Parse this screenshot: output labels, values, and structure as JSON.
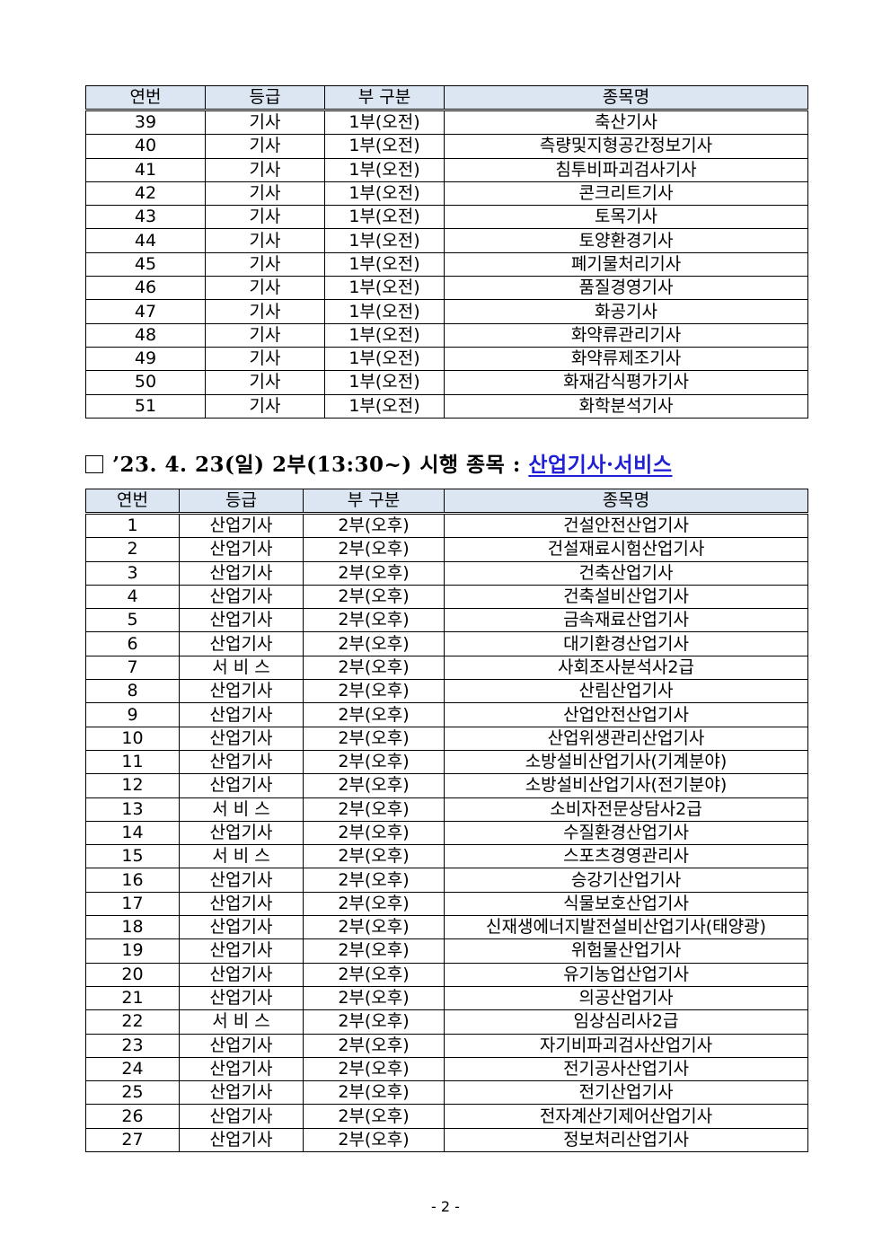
{
  "table1": {
    "headers": [
      "연번",
      "등급",
      "부 구분",
      "종목명"
    ],
    "rows": [
      [
        "39",
        "기사",
        "1부(오전)",
        "축산기사"
      ],
      [
        "40",
        "기사",
        "1부(오전)",
        "측량및지형공간정보기사"
      ],
      [
        "41",
        "기사",
        "1부(오전)",
        "침투비파괴검사기사"
      ],
      [
        "42",
        "기사",
        "1부(오전)",
        "콘크리트기사"
      ],
      [
        "43",
        "기사",
        "1부(오전)",
        "토목기사"
      ],
      [
        "44",
        "기사",
        "1부(오전)",
        "토양환경기사"
      ],
      [
        "45",
        "기사",
        "1부(오전)",
        "폐기물처리기사"
      ],
      [
        "46",
        "기사",
        "1부(오전)",
        "품질경영기사"
      ],
      [
        "47",
        "기사",
        "1부(오전)",
        "화공기사"
      ],
      [
        "48",
        "기사",
        "1부(오전)",
        "화약류관리기사"
      ],
      [
        "49",
        "기사",
        "1부(오전)",
        "화약류제조기사"
      ],
      [
        "50",
        "기사",
        "1부(오전)",
        "화재감식평가기사"
      ],
      [
        "51",
        "기사",
        "1부(오전)",
        "화학분석기사"
      ]
    ]
  },
  "section2": {
    "title_prefix": "’23. 4. 23(일) 2부(13:30~) 시행 종목 : ",
    "title_highlight": "산업기사·서비스",
    "highlight_color": "#1f1fd6"
  },
  "table2": {
    "headers": [
      "연번",
      "등급",
      "부 구분",
      "종목명"
    ],
    "rows": [
      [
        "1",
        "산업기사",
        "2부(오후)",
        "건설안전산업기사"
      ],
      [
        "2",
        "산업기사",
        "2부(오후)",
        "건설재료시험산업기사"
      ],
      [
        "3",
        "산업기사",
        "2부(오후)",
        "건축산업기사"
      ],
      [
        "4",
        "산업기사",
        "2부(오후)",
        "건축설비산업기사"
      ],
      [
        "5",
        "산업기사",
        "2부(오후)",
        "금속재료산업기사"
      ],
      [
        "6",
        "산업기사",
        "2부(오후)",
        "대기환경산업기사"
      ],
      [
        "7",
        "서 비 스",
        "2부(오후)",
        "사회조사분석사2급"
      ],
      [
        "8",
        "산업기사",
        "2부(오후)",
        "산림산업기사"
      ],
      [
        "9",
        "산업기사",
        "2부(오후)",
        "산업안전산업기사"
      ],
      [
        "10",
        "산업기사",
        "2부(오후)",
        "산업위생관리산업기사"
      ],
      [
        "11",
        "산업기사",
        "2부(오후)",
        "소방설비산업기사(기계분야)"
      ],
      [
        "12",
        "산업기사",
        "2부(오후)",
        "소방설비산업기사(전기분야)"
      ],
      [
        "13",
        "서 비 스",
        "2부(오후)",
        "소비자전문상담사2급"
      ],
      [
        "14",
        "산업기사",
        "2부(오후)",
        "수질환경산업기사"
      ],
      [
        "15",
        "서 비 스",
        "2부(오후)",
        "스포츠경영관리사"
      ],
      [
        "16",
        "산업기사",
        "2부(오후)",
        "승강기산업기사"
      ],
      [
        "17",
        "산업기사",
        "2부(오후)",
        "식물보호산업기사"
      ],
      [
        "18",
        "산업기사",
        "2부(오후)",
        "신재생에너지발전설비산업기사(태양광)"
      ],
      [
        "19",
        "산업기사",
        "2부(오후)",
        "위험물산업기사"
      ],
      [
        "20",
        "산업기사",
        "2부(오후)",
        "유기농업산업기사"
      ],
      [
        "21",
        "산업기사",
        "2부(오후)",
        "의공산업기사"
      ],
      [
        "22",
        "서 비 스",
        "2부(오후)",
        "임상심리사2급"
      ],
      [
        "23",
        "산업기사",
        "2부(오후)",
        "자기비파괴검사산업기사"
      ],
      [
        "24",
        "산업기사",
        "2부(오후)",
        "전기공사산업기사"
      ],
      [
        "25",
        "산업기사",
        "2부(오후)",
        "전기산업기사"
      ],
      [
        "26",
        "산업기사",
        "2부(오후)",
        "전자계산기제어산업기사"
      ],
      [
        "27",
        "산업기사",
        "2부(오후)",
        "정보처리산업기사"
      ]
    ]
  },
  "page_number": "- 2 -"
}
